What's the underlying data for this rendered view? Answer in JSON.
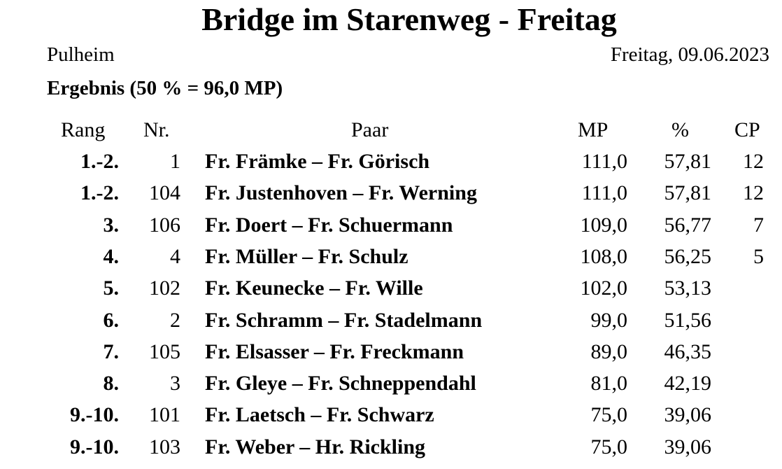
{
  "title": "Bridge im Starenweg - Freitag",
  "location": "Pulheim",
  "date": "Freitag, 09.06.2023",
  "subtitle": "Ergebnis  (50  % = 96,0 MP)",
  "headers": {
    "rang": "Rang",
    "nr": "Nr.",
    "paar": "Paar",
    "mp": "MP",
    "pct": "%",
    "cp": "CP"
  },
  "rows": [
    {
      "rang": "1.-2.",
      "nr": "1",
      "paar": "Fr. Främke – Fr. Görisch",
      "mp": "111,0",
      "pct": "57,81",
      "cp": "12"
    },
    {
      "rang": "1.-2.",
      "nr": "104",
      "paar": "Fr. Justenhoven – Fr. Werning",
      "mp": "111,0",
      "pct": "57,81",
      "cp": "12"
    },
    {
      "rang": "3.",
      "nr": "106",
      "paar": "Fr. Doert – Fr. Schuermann",
      "mp": "109,0",
      "pct": "56,77",
      "cp": "7"
    },
    {
      "rang": "4.",
      "nr": "4",
      "paar": "Fr. Müller – Fr. Schulz",
      "mp": "108,0",
      "pct": "56,25",
      "cp": "5"
    },
    {
      "rang": "5.",
      "nr": "102",
      "paar": "Fr. Keunecke – Fr. Wille",
      "mp": "102,0",
      "pct": "53,13",
      "cp": ""
    },
    {
      "rang": "6.",
      "nr": "2",
      "paar": "Fr. Schramm – Fr. Stadelmann",
      "mp": "99,0",
      "pct": "51,56",
      "cp": ""
    },
    {
      "rang": "7.",
      "nr": "105",
      "paar": "Fr. Elsasser – Fr. Freckmann",
      "mp": "89,0",
      "pct": "46,35",
      "cp": ""
    },
    {
      "rang": "8.",
      "nr": "3",
      "paar": "Fr. Gleye – Fr. Schneppendahl",
      "mp": "81,0",
      "pct": "42,19",
      "cp": ""
    },
    {
      "rang": "9.-10.",
      "nr": "101",
      "paar": "Fr. Laetsch – Fr. Schwarz",
      "mp": "75,0",
      "pct": "39,06",
      "cp": ""
    },
    {
      "rang": "9.-10.",
      "nr": "103",
      "paar": "Fr. Weber – Hr. Rickling",
      "mp": "75,0",
      "pct": "39,06",
      "cp": ""
    }
  ]
}
